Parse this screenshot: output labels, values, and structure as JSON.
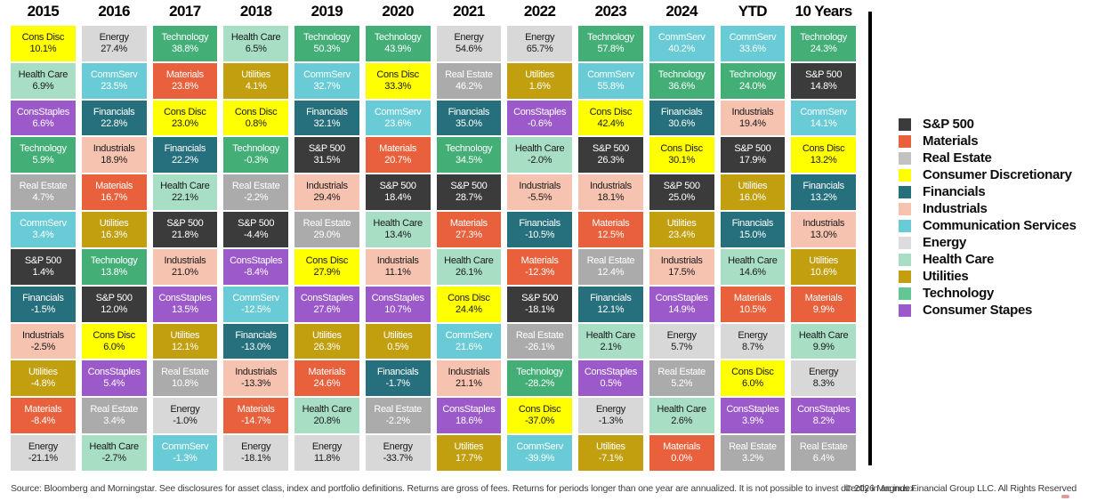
{
  "sectors": {
    "S&P 500": {
      "color": "#3B3B3B",
      "text": "#FFFFFF"
    },
    "Materials": {
      "color": "#E8613C",
      "text": "#FFFFFF"
    },
    "Real Estate": {
      "color": "#ABABAB",
      "text": "#FFFFFF"
    },
    "Cons Disc": {
      "color": "#FFFF00",
      "text": "#1A1A1A"
    },
    "Financials": {
      "color": "#26707D",
      "text": "#FFFFFF"
    },
    "Industrials": {
      "color": "#F6C3B1",
      "text": "#1A1A1A"
    },
    "CommServ": {
      "color": "#68CBD5",
      "text": "#FFFFFF"
    },
    "Energy": {
      "color": "#D8D8D8",
      "text": "#1A1A1A"
    },
    "Health Care": {
      "color": "#A8DEC4",
      "text": "#1A1A1A"
    },
    "Utilities": {
      "color": "#C19F0E",
      "text": "#FFFFFF"
    },
    "Technology": {
      "color": "#43AF77",
      "text": "#FFFFFF"
    },
    "ConsStaples": {
      "color": "#9B59C9",
      "text": "#FFFFFF"
    }
  },
  "chart_data": {
    "type": "table",
    "column_headers": [
      "2015",
      "2016",
      "2017",
      "2018",
      "2019",
      "2020",
      "2021",
      "2022",
      "2023",
      "2024",
      "YTD",
      "10 Years"
    ],
    "columns": [
      {
        "label": "2015",
        "cells": [
          {
            "sector": "Cons Disc",
            "value": "10.1%"
          },
          {
            "sector": "Health Care",
            "value": "6.9%"
          },
          {
            "sector": "ConsStaples",
            "value": "6.6%"
          },
          {
            "sector": "Technology",
            "value": "5.9%"
          },
          {
            "sector": "Real Estate",
            "value": "4.7%"
          },
          {
            "sector": "CommServ",
            "value": "3.4%"
          },
          {
            "sector": "S&P 500",
            "value": "1.4%"
          },
          {
            "sector": "Financials",
            "value": "-1.5%"
          },
          {
            "sector": "Industrials",
            "value": "-2.5%"
          },
          {
            "sector": "Utilities",
            "value": "-4.8%"
          },
          {
            "sector": "Materials",
            "value": "-8.4%"
          },
          {
            "sector": "Energy",
            "value": "-21.1%"
          }
        ]
      },
      {
        "label": "2016",
        "cells": [
          {
            "sector": "Energy",
            "value": "27.4%"
          },
          {
            "sector": "CommServ",
            "value": "23.5%"
          },
          {
            "sector": "Financials",
            "value": "22.8%"
          },
          {
            "sector": "Industrials",
            "value": "18.9%"
          },
          {
            "sector": "Materials",
            "value": "16.7%"
          },
          {
            "sector": "Utilities",
            "value": "16.3%"
          },
          {
            "sector": "Technology",
            "value": "13.8%"
          },
          {
            "sector": "S&P 500",
            "value": "12.0%"
          },
          {
            "sector": "Cons Disc",
            "value": "6.0%"
          },
          {
            "sector": "ConsStaples",
            "value": "5.4%"
          },
          {
            "sector": "Real Estate",
            "value": "3.4%"
          },
          {
            "sector": "Health Care",
            "value": "-2.7%"
          }
        ]
      },
      {
        "label": "2017",
        "cells": [
          {
            "sector": "Technology",
            "value": "38.8%"
          },
          {
            "sector": "Materials",
            "value": "23.8%"
          },
          {
            "sector": "Cons Disc",
            "value": "23.0%"
          },
          {
            "sector": "Financials",
            "value": "22.2%"
          },
          {
            "sector": "Health Care",
            "value": "22.1%"
          },
          {
            "sector": "S&P 500",
            "value": "21.8%"
          },
          {
            "sector": "Industrials",
            "value": "21.0%"
          },
          {
            "sector": "ConsStaples",
            "value": "13.5%"
          },
          {
            "sector": "Utilities",
            "value": "12.1%"
          },
          {
            "sector": "Real Estate",
            "value": "10.8%"
          },
          {
            "sector": "Energy",
            "value": "-1.0%"
          },
          {
            "sector": "CommServ",
            "value": "-1.3%"
          }
        ]
      },
      {
        "label": "2018",
        "cells": [
          {
            "sector": "Health Care",
            "value": "6.5%"
          },
          {
            "sector": "Utilities",
            "value": "4.1%"
          },
          {
            "sector": "Cons Disc",
            "value": "0.8%"
          },
          {
            "sector": "Technology",
            "value": "-0.3%"
          },
          {
            "sector": "Real Estate",
            "value": "-2.2%"
          },
          {
            "sector": "S&P 500",
            "value": "-4.4%"
          },
          {
            "sector": "ConsStaples",
            "value": "-8.4%"
          },
          {
            "sector": "CommServ",
            "value": "-12.5%"
          },
          {
            "sector": "Financials",
            "value": "-13.0%"
          },
          {
            "sector": "Industrials",
            "value": "-13.3%"
          },
          {
            "sector": "Materials",
            "value": "-14.7%"
          },
          {
            "sector": "Energy",
            "value": "-18.1%"
          }
        ]
      },
      {
        "label": "2019",
        "cells": [
          {
            "sector": "Technology",
            "value": "50.3%"
          },
          {
            "sector": "CommServ",
            "value": "32.7%"
          },
          {
            "sector": "Financials",
            "value": "32.1%"
          },
          {
            "sector": "S&P 500",
            "value": "31.5%"
          },
          {
            "sector": "Industrials",
            "value": "29.4%"
          },
          {
            "sector": "Real Estate",
            "value": "29.0%"
          },
          {
            "sector": "Cons Disc",
            "value": "27.9%"
          },
          {
            "sector": "ConsStaples",
            "value": "27.6%"
          },
          {
            "sector": "Utilities",
            "value": "26.3%"
          },
          {
            "sector": "Materials",
            "value": "24.6%"
          },
          {
            "sector": "Health Care",
            "value": "20.8%"
          },
          {
            "sector": "Energy",
            "value": "11.8%"
          }
        ]
      },
      {
        "label": "2020",
        "cells": [
          {
            "sector": "Technology",
            "value": "43.9%"
          },
          {
            "sector": "Cons Disc",
            "value": "33.3%"
          },
          {
            "sector": "CommServ",
            "value": "23.6%"
          },
          {
            "sector": "Materials",
            "value": "20.7%"
          },
          {
            "sector": "S&P 500",
            "value": "18.4%"
          },
          {
            "sector": "Health Care",
            "value": "13.4%"
          },
          {
            "sector": "Industrials",
            "value": "11.1%"
          },
          {
            "sector": "ConsStaples",
            "value": "10.7%"
          },
          {
            "sector": "Utilities",
            "value": "0.5%"
          },
          {
            "sector": "Financials",
            "value": "-1.7%"
          },
          {
            "sector": "Real Estate",
            "value": "-2.2%"
          },
          {
            "sector": "Energy",
            "value": "-33.7%"
          }
        ]
      },
      {
        "label": "2021",
        "cells": [
          {
            "sector": "Energy",
            "value": "54.6%"
          },
          {
            "sector": "Real Estate",
            "value": "46.2%"
          },
          {
            "sector": "Financials",
            "value": "35.0%"
          },
          {
            "sector": "Technology",
            "value": "34.5%"
          },
          {
            "sector": "S&P 500",
            "value": "28.7%"
          },
          {
            "sector": "Materials",
            "value": "27.3%"
          },
          {
            "sector": "Health Care",
            "value": "26.1%"
          },
          {
            "sector": "Cons Disc",
            "value": "24.4%"
          },
          {
            "sector": "CommServ",
            "value": "21.6%"
          },
          {
            "sector": "Industrials",
            "value": "21.1%"
          },
          {
            "sector": "ConsStaples",
            "value": "18.6%"
          },
          {
            "sector": "Utilities",
            "value": "17.7%"
          }
        ]
      },
      {
        "label": "2022",
        "cells": [
          {
            "sector": "Energy",
            "value": "65.7%"
          },
          {
            "sector": "Utilities",
            "value": "1.6%"
          },
          {
            "sector": "ConsStaples",
            "value": "-0.6%"
          },
          {
            "sector": "Health Care",
            "value": "-2.0%"
          },
          {
            "sector": "Industrials",
            "value": "-5.5%"
          },
          {
            "sector": "Financials",
            "value": "-10.5%"
          },
          {
            "sector": "Materials",
            "value": "-12.3%"
          },
          {
            "sector": "S&P 500",
            "value": "-18.1%"
          },
          {
            "sector": "Real Estate",
            "value": "-26.1%"
          },
          {
            "sector": "Technology",
            "value": "-28.2%"
          },
          {
            "sector": "Cons Disc",
            "value": "-37.0%"
          },
          {
            "sector": "CommServ",
            "value": "-39.9%"
          }
        ]
      },
      {
        "label": "2023",
        "cells": [
          {
            "sector": "Technology",
            "value": "57.8%"
          },
          {
            "sector": "CommServ",
            "value": "55.8%"
          },
          {
            "sector": "Cons Disc",
            "value": "42.4%"
          },
          {
            "sector": "S&P 500",
            "value": "26.3%"
          },
          {
            "sector": "Industrials",
            "value": "18.1%"
          },
          {
            "sector": "Materials",
            "value": "12.5%"
          },
          {
            "sector": "Real Estate",
            "value": "12.4%"
          },
          {
            "sector": "Financials",
            "value": "12.1%"
          },
          {
            "sector": "Health Care",
            "value": "2.1%"
          },
          {
            "sector": "ConsStaples",
            "value": "0.5%"
          },
          {
            "sector": "Energy",
            "value": "-1.3%"
          },
          {
            "sector": "Utilities",
            "value": "-7.1%"
          }
        ]
      },
      {
        "label": "2024",
        "cells": [
          {
            "sector": "CommServ",
            "value": "40.2%"
          },
          {
            "sector": "Technology",
            "value": "36.6%"
          },
          {
            "sector": "Financials",
            "value": "30.6%"
          },
          {
            "sector": "Cons Disc",
            "value": "30.1%"
          },
          {
            "sector": "S&P 500",
            "value": "25.0%"
          },
          {
            "sector": "Utilities",
            "value": "23.4%"
          },
          {
            "sector": "Industrials",
            "value": "17.5%"
          },
          {
            "sector": "ConsStaples",
            "value": "14.9%"
          },
          {
            "sector": "Energy",
            "value": "5.7%"
          },
          {
            "sector": "Real Estate",
            "value": "5.2%"
          },
          {
            "sector": "Health Care",
            "value": "2.6%"
          },
          {
            "sector": "Materials",
            "value": "0.0%"
          }
        ]
      },
      {
        "label": "YTD",
        "cells": [
          {
            "sector": "CommServ",
            "value": "33.6%"
          },
          {
            "sector": "Technology",
            "value": "24.0%"
          },
          {
            "sector": "Industrials",
            "value": "19.4%"
          },
          {
            "sector": "S&P 500",
            "value": "17.9%"
          },
          {
            "sector": "Utilities",
            "value": "16.0%"
          },
          {
            "sector": "Financials",
            "value": "15.0%"
          },
          {
            "sector": "Health Care",
            "value": "14.6%"
          },
          {
            "sector": "Materials",
            "value": "10.5%"
          },
          {
            "sector": "Energy",
            "value": "8.7%"
          },
          {
            "sector": "Cons Disc",
            "value": "6.0%"
          },
          {
            "sector": "ConsStaples",
            "value": "3.9%"
          },
          {
            "sector": "Real Estate",
            "value": "3.2%"
          }
        ]
      },
      {
        "label": "10 Years",
        "cells": [
          {
            "sector": "Technology",
            "value": "24.3%"
          },
          {
            "sector": "S&P 500",
            "value": "14.8%"
          },
          {
            "sector": "CommServ",
            "value": "14.1%"
          },
          {
            "sector": "Cons Disc",
            "value": "13.2%"
          },
          {
            "sector": "Financials",
            "value": "13.2%"
          },
          {
            "sector": "Industrials",
            "value": "13.0%"
          },
          {
            "sector": "Utilities",
            "value": "10.6%"
          },
          {
            "sector": "Materials",
            "value": "9.9%"
          },
          {
            "sector": "Health Care",
            "value": "9.9%"
          },
          {
            "sector": "Energy",
            "value": "8.3%"
          },
          {
            "sector": "ConsStaples",
            "value": "8.2%"
          },
          {
            "sector": "Real Estate",
            "value": "6.4%"
          }
        ]
      }
    ],
    "legend": {
      "position": "right",
      "items": [
        {
          "label": "S&P 500",
          "color": "#3B3B3B"
        },
        {
          "label": "Materials",
          "color": "#E8613C"
        },
        {
          "label": "Real Estate",
          "color": "#C2C2C2"
        },
        {
          "label": "Consumer Discretionary",
          "color": "#FFFF00"
        },
        {
          "label": "Financials",
          "color": "#26707D"
        },
        {
          "label": "Industrials",
          "color": "#F6C3B1"
        },
        {
          "label": "Communication Services",
          "color": "#68CBD5"
        },
        {
          "label": "Energy",
          "color": "#DCDCDC"
        },
        {
          "label": "Health Care",
          "color": "#A8DEC4"
        },
        {
          "label": "Utilities",
          "color": "#C19F0E"
        },
        {
          "label": "Technology",
          "color": "#63C795"
        },
        {
          "label": "Consumer Stapes",
          "color": "#9B59C9"
        }
      ]
    }
  },
  "footer": {
    "source": "Source: Bloomberg and Morningstar. See disclosures for asset class, index and portfolio definitions. Returns are gross of fees. Returns for periods longer than one year are annualized. It is not possible to invest directly in an index.",
    "copyright": "© 2026 Magnus Financial Group LLC. All Rights Reserved"
  }
}
